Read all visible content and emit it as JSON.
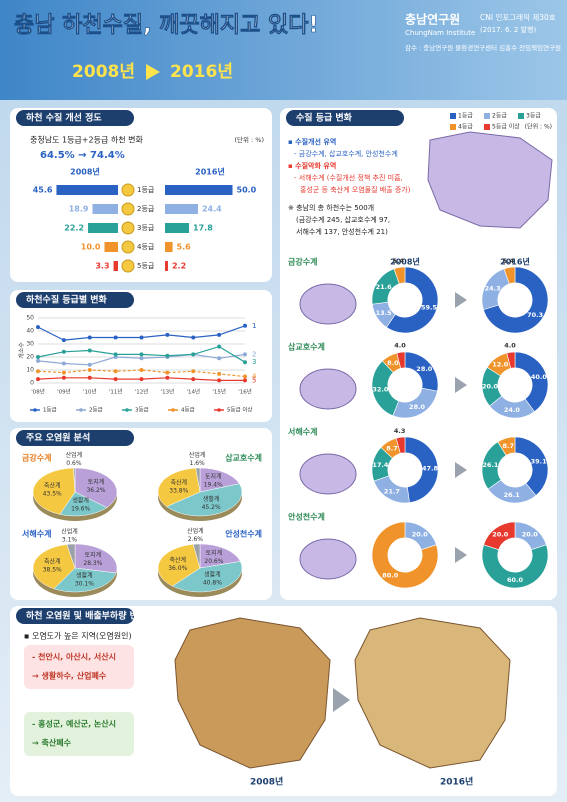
{
  "header": {
    "title": "충남 하천수질, 깨끗해지고 있다!",
    "period": [
      "2008년",
      "2016년"
    ],
    "org": "충남연구원",
    "org_en": "ChungNam Institute",
    "issue": "CNI 인포그래픽 제30호",
    "date": "(2017. 6. 2 발행)",
    "reviewer": "감수 : 충남연구원 물환경연구센터 김홍수 전임책임연구원"
  },
  "sections": [
    "하천 수질 개선 정도",
    "하천수질 등급별 변화",
    "주요 오염원 분석",
    "수질 등급 변화",
    "하천 오염원 및 배출부하량 변화"
  ],
  "grade_legend": {
    "labels": [
      "1등급",
      "2등급",
      "3등급",
      "4등급",
      "5등급 이상"
    ],
    "colors": [
      "#2a62c4",
      "#8fb0e3",
      "#2aa198",
      "#f0932b",
      "#e8392f"
    ],
    "unit": "(단위 : %)"
  },
  "right_notes": [
    "▪ 수질개선 유역",
    "- 금강수계, 삽교호수계, 안성천수계",
    "▪ 수질악화 유역",
    "- 서해수계 (수질개선 정책 추진 미흡,",
    "홍성군 등 축산계 오염물질 배출 증가)",
    "※ 충남의 총 하천수는 500개",
    "(금강수계 245, 삽교호수계 97,",
    "서해수계 137, 안성천수계 21)"
  ],
  "donut_years": [
    "2008년",
    "2016년"
  ],
  "bottom_notes": [
    "▪ 오염도가 높은 지역(오염원인)",
    "- 천안시, 아산시, 서산시",
    "→ 생활하수, 산업폐수",
    "- 홍성군, 예산군, 논산시",
    "→ 축산폐수"
  ],
  "map_years": [
    "2008년",
    "2016년"
  ],
  "chart_data": [
    {
      "type": "diverging_bar",
      "title": "충청남도 1등급+2등급 하천 변화",
      "subtitle": "64.5% → 74.4%",
      "unit": "(단위 : %)",
      "categories": [
        "1등급",
        "2등급",
        "3등급",
        "4등급",
        "5등급"
      ],
      "colors": [
        "#2a62c4",
        "#8fb0e3",
        "#2aa198",
        "#f0932b",
        "#e8392f"
      ],
      "series": [
        {
          "name": "2008년",
          "values": [
            45.6,
            18.9,
            22.2,
            10.0,
            3.3
          ],
          "value_labels": [
            "45.6",
            "18.9",
            "22.2",
            "10.0",
            "3.3"
          ]
        },
        {
          "name": "2016년",
          "values": [
            50.0,
            24.4,
            17.8,
            5.6,
            2.2
          ],
          "value_labels": [
            "50.0",
            "24.4",
            "17.8",
            "5.6",
            "2.2"
          ]
        }
      ]
    },
    {
      "type": "line",
      "categories": [
        "'08년",
        "'09년",
        "'10년",
        "'11년",
        "'12년",
        "'13년",
        "'14년",
        "'15년",
        "'16년"
      ],
      "ylabel": "개소수",
      "ylim": [
        0,
        50
      ],
      "yticks": [
        0,
        10,
        20,
        30,
        40,
        50
      ],
      "grid": true,
      "series": [
        {
          "name": "1등급",
          "color": "#2a62c4",
          "end_label": "1",
          "values": [
            43,
            33,
            35,
            35,
            35,
            37,
            35,
            37,
            44
          ]
        },
        {
          "name": "2등급",
          "color": "#8fa9d6",
          "end_label": "2",
          "values": [
            17,
            15,
            14,
            20,
            19,
            20,
            22,
            19,
            22
          ]
        },
        {
          "name": "3등급",
          "color": "#2aa198",
          "end_label": "3",
          "values": [
            20,
            24,
            25,
            22,
            22,
            21,
            22,
            28,
            16
          ]
        },
        {
          "name": "4등급",
          "color": "#f0932b",
          "end_label": "4",
          "values": [
            9,
            8,
            10,
            9,
            10,
            8,
            9,
            7,
            5
          ]
        },
        {
          "name": "5등급 이상",
          "color": "#e8392f",
          "end_label": "5",
          "values": [
            3,
            4,
            4,
            3,
            3,
            4,
            3,
            2,
            2
          ]
        }
      ]
    },
    {
      "type": "pie",
      "title": "금강수계",
      "categories": [
        "토지계",
        "생활계",
        "축산계",
        "산업계"
      ],
      "colors": [
        "#b9a0d8",
        "#7cc7c9",
        "#f5c842",
        "#9aa0a8"
      ],
      "values": [
        36.2,
        19.6,
        43.5,
        0.6
      ],
      "value_labels": [
        "36.2%",
        "19.6%",
        "43.5%",
        "0.6%"
      ]
    },
    {
      "type": "pie",
      "title": "삽교호수계",
      "categories": [
        "토지계",
        "생활계",
        "축산계",
        "산업계"
      ],
      "colors": [
        "#b9a0d8",
        "#7cc7c9",
        "#f5c842",
        "#9aa0a8"
      ],
      "values": [
        19.4,
        45.2,
        33.8,
        1.6
      ],
      "value_labels": [
        "19.4%",
        "45.2%",
        "33.8%",
        "1.6%"
      ]
    },
    {
      "type": "pie",
      "title": "서해수계",
      "categories": [
        "토지계",
        "생활계",
        "축산계",
        "산업계"
      ],
      "colors": [
        "#b9a0d8",
        "#7cc7c9",
        "#f5c842",
        "#9aa0a8"
      ],
      "values": [
        28.3,
        30.1,
        38.5,
        3.1
      ],
      "value_labels": [
        "28.3%",
        "30.1%",
        "38.5%",
        "3.1%"
      ]
    },
    {
      "type": "pie",
      "title": "안성천수계",
      "categories": [
        "토지계",
        "생활계",
        "축산계",
        "산업계"
      ],
      "colors": [
        "#b9a0d8",
        "#7cc7c9",
        "#f5c842",
        "#9aa0a8"
      ],
      "values": [
        20.6,
        40.8,
        36.0,
        2.6
      ],
      "value_labels": [
        "20.6%",
        "40.8%",
        "36.0%",
        "2.6%"
      ]
    },
    {
      "type": "donut",
      "title": "금강수계",
      "series": [
        {
          "values": [
            59.5,
            13.5,
            21.6,
            5.4,
            null
          ],
          "value_labels": [
            "59.5",
            "13.5",
            "21.6",
            "5.4",
            null
          ]
        },
        {
          "values": [
            70.3,
            24.3,
            null,
            5.4,
            null
          ],
          "value_labels": [
            "70.3",
            "24.3",
            null,
            "5.4",
            null
          ]
        }
      ]
    },
    {
      "type": "donut",
      "title": "삽교호수계",
      "series": [
        {
          "values": [
            28.0,
            28.0,
            32.0,
            8.0,
            4.0
          ],
          "value_labels": [
            "28.0",
            "28.0",
            "32.0",
            "8.0",
            "4.0"
          ]
        },
        {
          "values": [
            40.0,
            24.0,
            20.0,
            12.0,
            4.0
          ],
          "value_labels": [
            "40.0",
            "24.0",
            "20.0",
            "12.0",
            "4.0"
          ]
        }
      ]
    },
    {
      "type": "donut",
      "title": "서해수계",
      "series": [
        {
          "values": [
            47.8,
            21.7,
            17.4,
            8.7,
            4.3
          ],
          "value_labels": [
            "47.8",
            "21.7",
            "17.4",
            "8.7",
            "4.3"
          ]
        },
        {
          "values": [
            39.1,
            26.1,
            26.1,
            8.7,
            null
          ],
          "value_labels": [
            "39.1",
            "26.1",
            "26.1",
            "8.7",
            null
          ]
        }
      ]
    },
    {
      "type": "donut",
      "title": "안성천수계",
      "series": [
        {
          "values": [
            null,
            20.0,
            null,
            80.0,
            null
          ],
          "value_labels": [
            null,
            "20.0",
            null,
            "80.0",
            null
          ]
        },
        {
          "values": [
            null,
            20.0,
            60.0,
            null,
            20.0
          ],
          "value_labels": [
            null,
            "20.0",
            "60.0",
            null,
            "20.0"
          ]
        }
      ]
    }
  ]
}
